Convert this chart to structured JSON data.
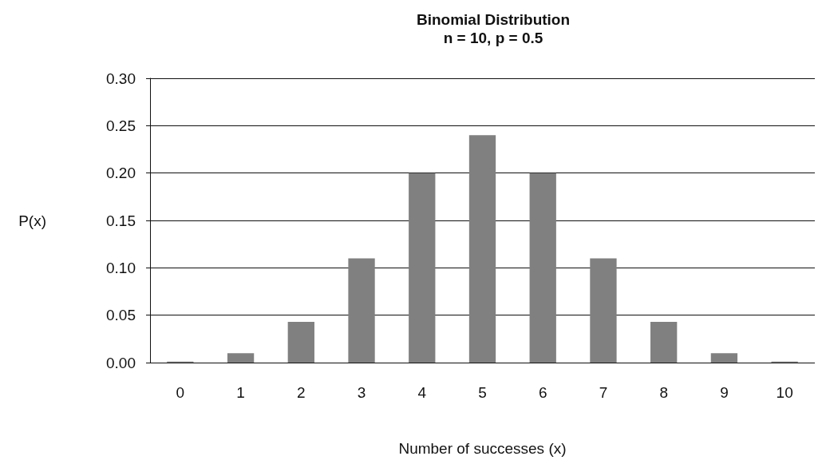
{
  "chart_data": {
    "type": "bar",
    "title": "Binomial Distribution",
    "subtitle": "n = 10, p = 0.5",
    "xlabel": "Number of successes (x)",
    "ylabel": "P(x)",
    "categories": [
      "0",
      "1",
      "2",
      "3",
      "4",
      "5",
      "6",
      "7",
      "8",
      "9",
      "10"
    ],
    "values": [
      0.001,
      0.01,
      0.043,
      0.11,
      0.2,
      0.24,
      0.2,
      0.11,
      0.043,
      0.01,
      0.001
    ],
    "color": "#808080",
    "ylim": [
      0,
      0.3
    ],
    "yticks": [
      {
        "value": 0,
        "label": "0.00"
      },
      {
        "value": 0.05,
        "label": "0.05"
      },
      {
        "value": 0.1,
        "label": "0.10"
      },
      {
        "value": 0.15,
        "label": "0.15"
      },
      {
        "value": 0.2,
        "label": "0.20"
      },
      {
        "value": 0.25,
        "label": "0.25"
      },
      {
        "value": 0.3,
        "label": "0.30"
      }
    ],
    "grid": "y"
  }
}
